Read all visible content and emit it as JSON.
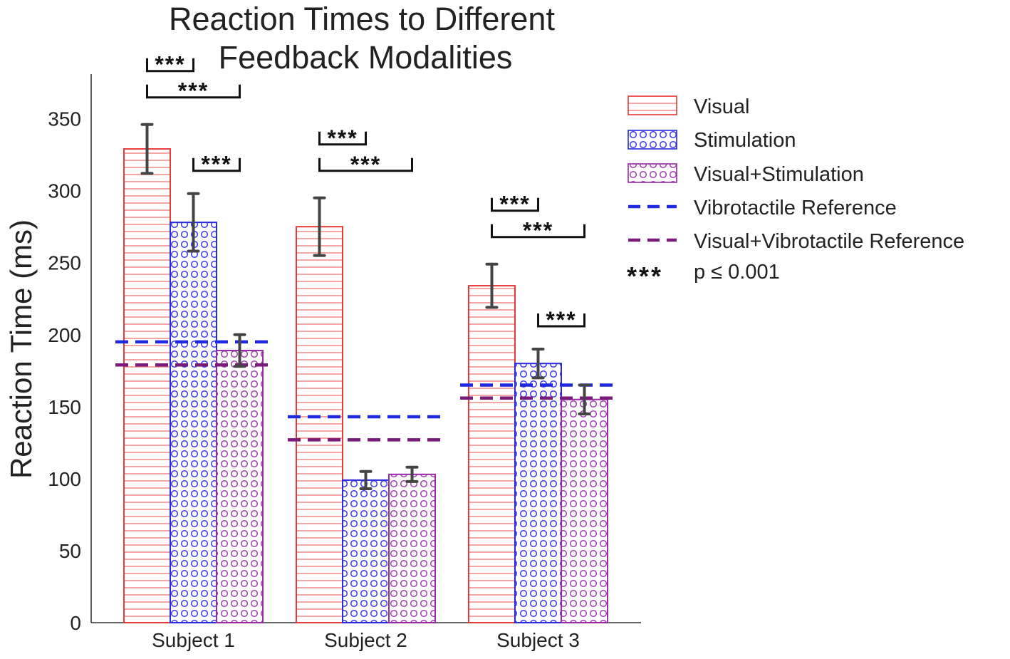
{
  "chart_data": {
    "type": "bar",
    "title": "Reaction Times to Different Feedback Modalities",
    "title_lines": [
      "Reaction Times to Different",
      "Feedback Modalities"
    ],
    "xlabel": "",
    "ylabel": "Reaction Time (ms)",
    "ylim": [
      0,
      380
    ],
    "yticks": [
      0,
      50,
      100,
      150,
      200,
      250,
      300,
      350
    ],
    "categories": [
      "Subject 1",
      "Subject 2",
      "Subject 3"
    ],
    "series": [
      {
        "name": "Visual",
        "color": "#e83a3a",
        "pattern": "horizontal-lines",
        "values": [
          329,
          275,
          234
        ],
        "errors": [
          17,
          20,
          15
        ]
      },
      {
        "name": "Stimulation",
        "color": "#2a2ae0",
        "pattern": "circles",
        "values": [
          278,
          99,
          180
        ],
        "errors": [
          20,
          6,
          10
        ]
      },
      {
        "name": "Visual+Stimulation",
        "color": "#9a2aa8",
        "pattern": "circles",
        "values": [
          189,
          103,
          155
        ],
        "errors": [
          11,
          5,
          10
        ]
      }
    ],
    "reference_lines": [
      {
        "name": "Vibrotactile Reference",
        "color": "#1f2ae0",
        "style": "dashed",
        "values": [
          195,
          143,
          165
        ]
      },
      {
        "name": "Visual+Vibrotactile Reference",
        "color": "#7a1a7a",
        "style": "dashed",
        "values": [
          179,
          127,
          156
        ]
      }
    ],
    "significance": {
      "label": "***",
      "legend_label": "p ≤ 0.001",
      "comparisons": [
        {
          "group": 0,
          "from": 0,
          "to": 1,
          "level": 0
        },
        {
          "group": 0,
          "from": 0,
          "to": 2,
          "level": 1
        },
        {
          "group": 0,
          "from": 1,
          "to": 2,
          "level": 2
        },
        {
          "group": 1,
          "from": 0,
          "to": 1,
          "level": 0
        },
        {
          "group": 1,
          "from": 0,
          "to": 2,
          "level": 1
        },
        {
          "group": 2,
          "from": 0,
          "to": 1,
          "level": 0
        },
        {
          "group": 2,
          "from": 0,
          "to": 2,
          "level": 1
        },
        {
          "group": 2,
          "from": 1,
          "to": 2,
          "level": 2
        }
      ]
    },
    "legend_position": "top-right"
  }
}
